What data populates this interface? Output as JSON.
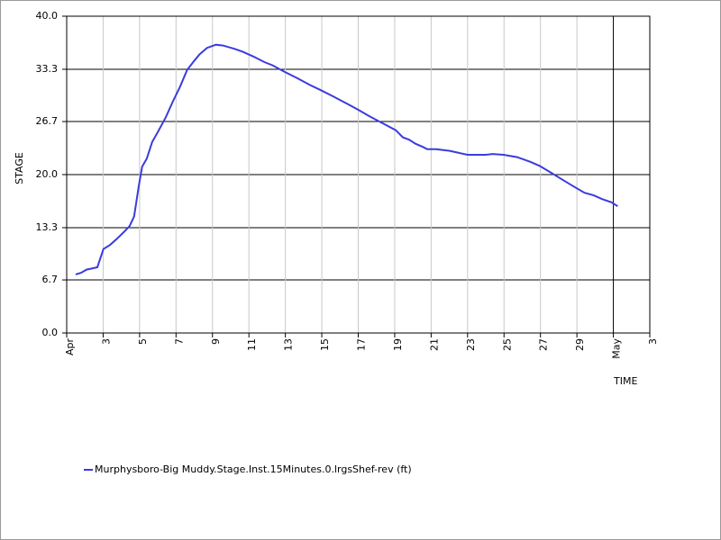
{
  "chart_data": {
    "type": "line",
    "x_label": "TIME",
    "y_label": "STAGE",
    "xlim": [
      1,
      33
    ],
    "ylim": [
      0,
      40
    ],
    "xticks": [
      {
        "value": 1,
        "label": "Apr"
      },
      3,
      5,
      7,
      9,
      11,
      13,
      15,
      17,
      19,
      21,
      23,
      25,
      27,
      29,
      {
        "value": 31,
        "label": "May"
      },
      {
        "value": 33,
        "label": "3"
      }
    ],
    "yticks": [
      {
        "value": 0,
        "label": "0.0"
      },
      6.7,
      13.3,
      {
        "value": 20,
        "label": "20.0"
      },
      26.7,
      33.3,
      {
        "value": 40,
        "label": "40.0"
      }
    ],
    "grid": true,
    "series": [
      {
        "name": "Murphysboro-Big Muddy.Stage.Inst.15Minutes.0.lrgsShef-rev (ft)",
        "color": "#3b3bdf",
        "x": [
          1.49,
          1.79,
          2.09,
          2.68,
          3.02,
          3.37,
          3.76,
          4.16,
          4.45,
          4.7,
          4.95,
          5.14,
          5.39,
          5.69,
          6.03,
          6.43,
          6.82,
          7.22,
          7.61,
          8.01,
          8.3,
          8.7,
          9.19,
          9.58,
          10.18,
          10.67,
          11.26,
          11.85,
          12.3,
          12.94,
          13.63,
          14.37,
          14.91,
          15.6,
          16.34,
          16.98,
          17.67,
          18.32,
          19.06,
          19.45,
          19.8,
          20.14,
          20.54,
          20.78,
          21.28,
          22.02,
          23.0,
          23.99,
          24.38,
          24.98,
          25.72,
          26.46,
          26.95,
          27.54,
          28.18,
          28.82,
          29.42,
          29.91,
          30.4,
          30.9,
          31.24
        ],
        "values": [
          7.4,
          7.6,
          8.0,
          8.3,
          10.6,
          11.1,
          11.9,
          12.8,
          13.5,
          14.7,
          18.5,
          21.0,
          22.0,
          24.1,
          25.5,
          27.2,
          29.2,
          31.1,
          33.2,
          34.4,
          35.2,
          36.0,
          36.4,
          36.3,
          35.9,
          35.5,
          34.9,
          34.2,
          33.8,
          33.0,
          32.2,
          31.3,
          30.7,
          29.9,
          29.0,
          28.2,
          27.3,
          26.5,
          25.6,
          24.7,
          24.4,
          23.9,
          23.5,
          23.2,
          23.2,
          23.0,
          22.5,
          22.5,
          22.6,
          22.5,
          22.2,
          21.6,
          21.1,
          20.3,
          19.4,
          18.5,
          17.7,
          17.4,
          16.9,
          16.5,
          16.0
        ]
      }
    ]
  }
}
